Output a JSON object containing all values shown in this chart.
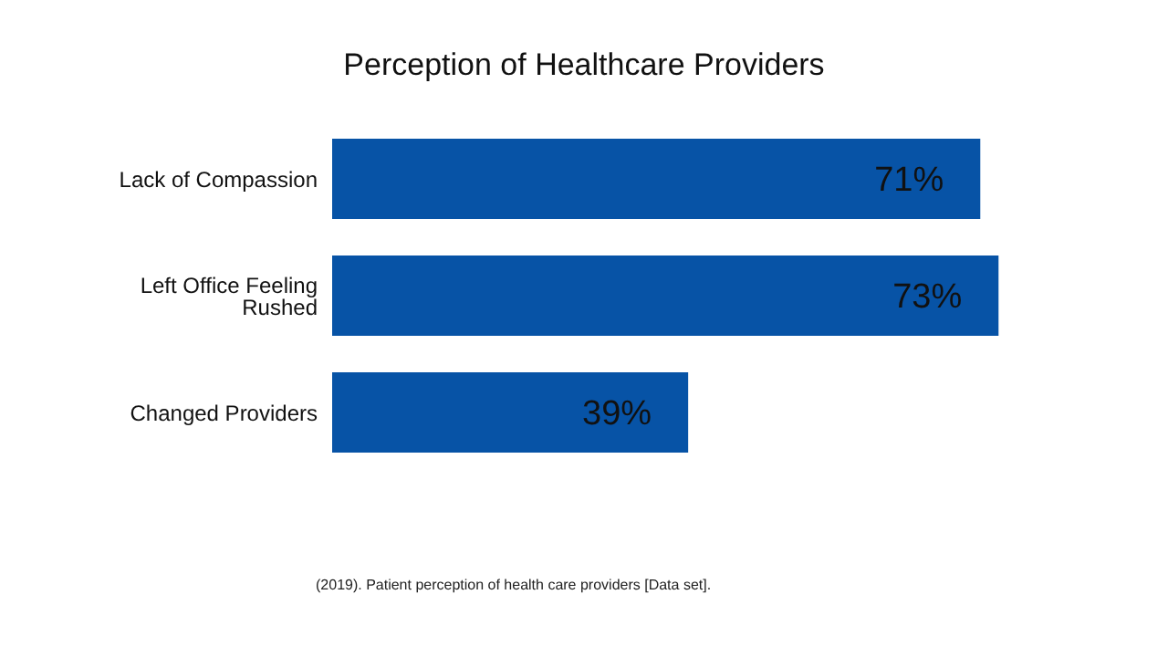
{
  "chart_data": {
    "type": "bar",
    "orientation": "horizontal",
    "title": "Perception of Healthcare Providers",
    "categories": [
      "Lack of Compassion",
      "Left Office Feeling Rushed",
      "Changed Providers"
    ],
    "values": [
      71,
      73,
      39
    ],
    "color": "#0753a6",
    "value_labels": [
      "71%",
      "73%",
      "39%"
    ],
    "annotations": [
      "(2019). Patient perception of health care providers [Data set]."
    ],
    "grid": false,
    "legend": false
  }
}
